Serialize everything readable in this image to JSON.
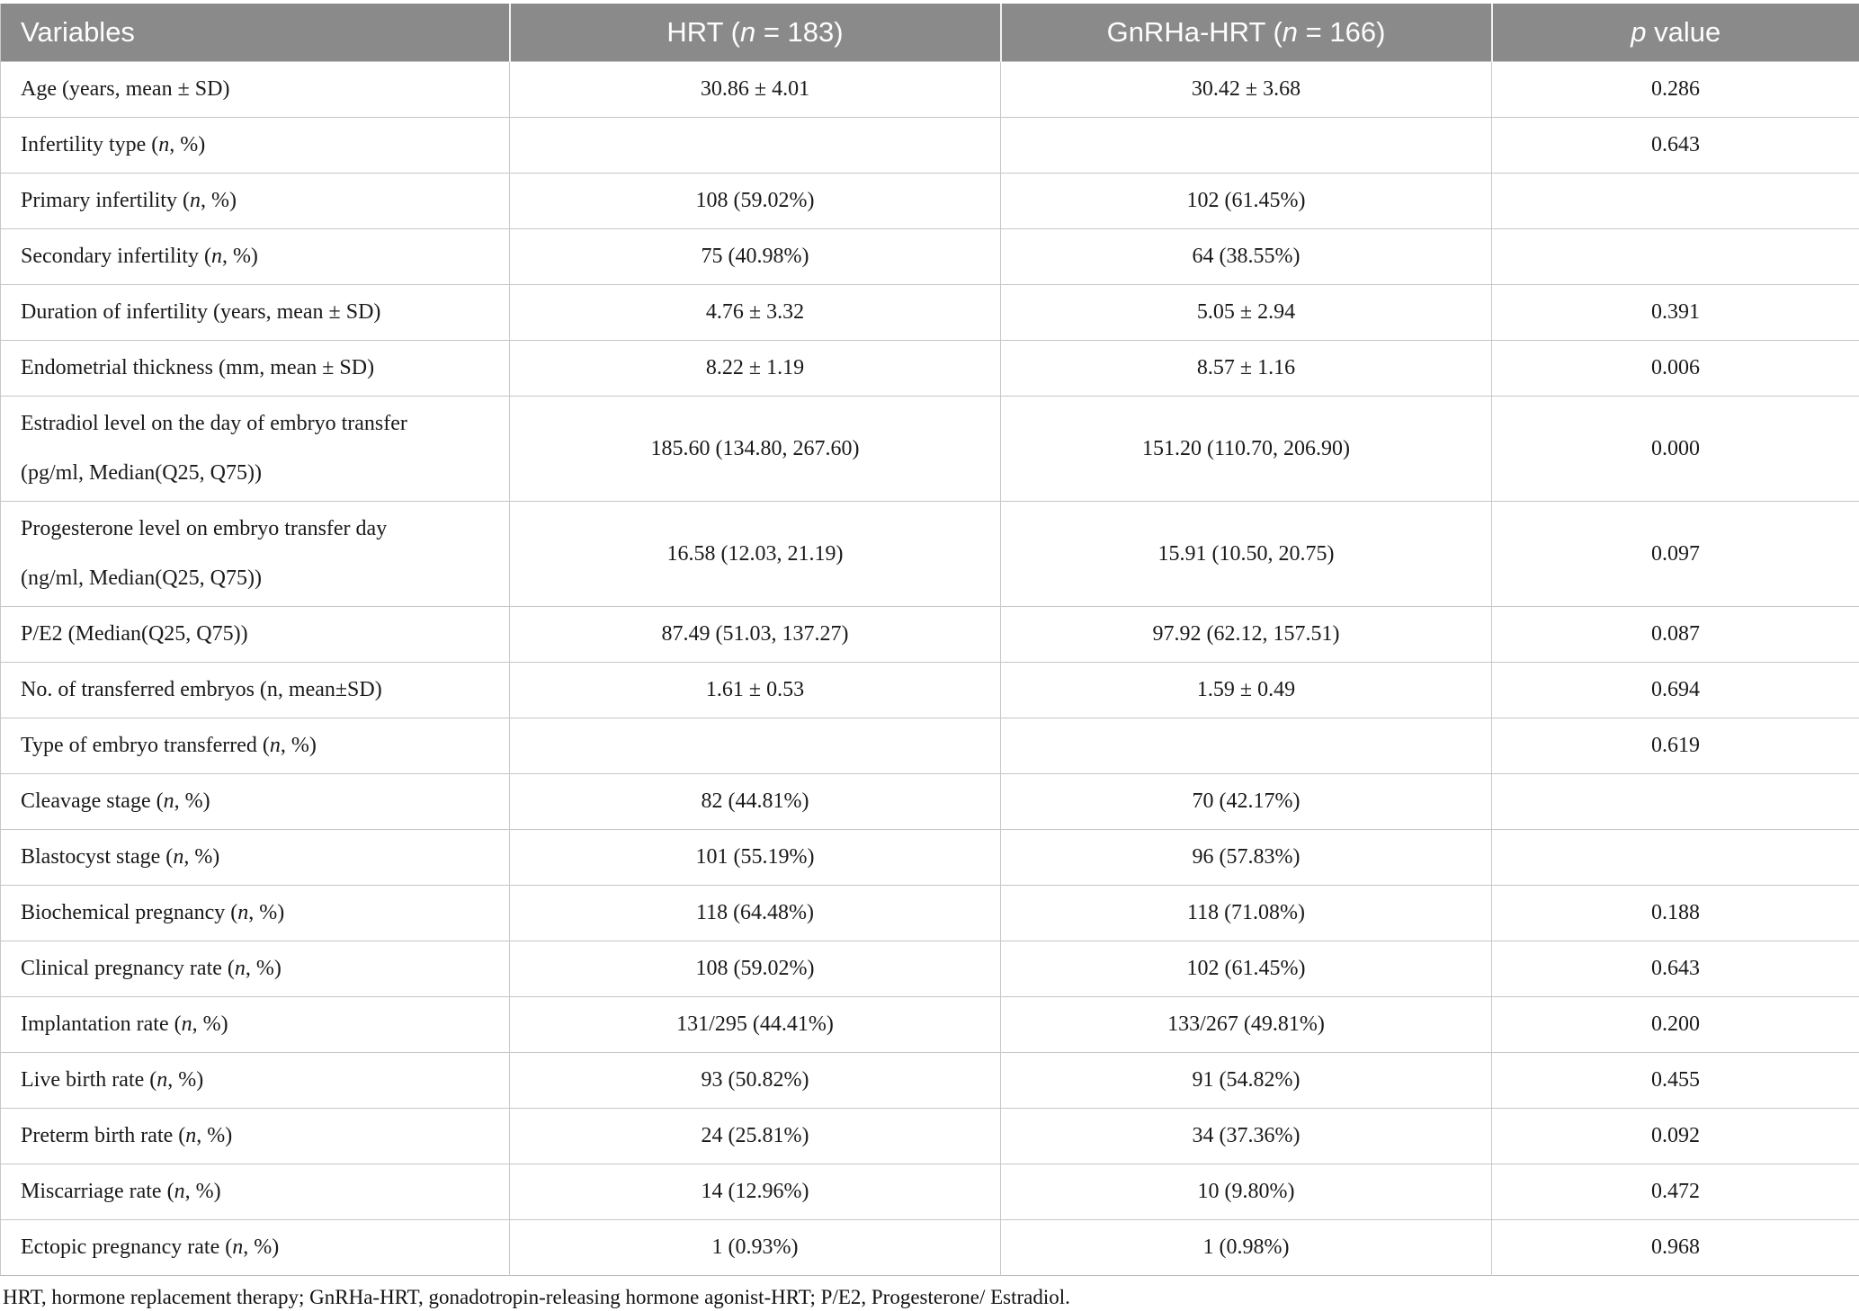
{
  "theme": {
    "header_bg": "#8a8a8a",
    "header_text": "#fdfdfd",
    "grid_line": "#c9c9c9",
    "body_text": "#1a1a1a"
  },
  "table": {
    "headers": [
      {
        "pre": "Variables",
        "italic": "",
        "post": ""
      },
      {
        "pre": "HRT (",
        "italic": "n",
        "post": " = 183)"
      },
      {
        "pre": "GnRHa-HRT (",
        "italic": "n",
        "post": " = 166)"
      },
      {
        "pre": "",
        "italic": "p",
        "post": " value"
      }
    ],
    "rows": [
      {
        "label": "Age (years, mean ± SD)",
        "label2": "",
        "italic_n": false,
        "hrt": "30.86 ± 4.01",
        "gnrha": "30.42 ± 3.68",
        "p": "0.286"
      },
      {
        "label": "Infertility type (n, %)",
        "label2": "",
        "italic_n": true,
        "hrt": "",
        "gnrha": "",
        "p": "0.643"
      },
      {
        "label": "Primary infertility (n, %)",
        "label2": "",
        "italic_n": true,
        "hrt": "108 (59.02%)",
        "gnrha": "102 (61.45%)",
        "p": ""
      },
      {
        "label": "Secondary infertility (n, %)",
        "label2": "",
        "italic_n": true,
        "hrt": "75 (40.98%)",
        "gnrha": "64 (38.55%)",
        "p": ""
      },
      {
        "label": "Duration of infertility (years, mean ± SD)",
        "label2": "",
        "italic_n": false,
        "hrt": "4.76 ± 3.32",
        "gnrha": "5.05 ± 2.94",
        "p": "0.391"
      },
      {
        "label": "Endometrial thickness (mm, mean ± SD)",
        "label2": "",
        "italic_n": false,
        "hrt": "8.22 ± 1.19",
        "gnrha": "8.57 ± 1.16",
        "p": "0.006"
      },
      {
        "label": "Estradiol level on the day of embryo transfer",
        "label2": "(pg/ml, Median(Q25, Q75))",
        "italic_n": false,
        "hrt": "185.60 (134.80, 267.60)",
        "gnrha": "151.20 (110.70, 206.90)",
        "p": "0.000"
      },
      {
        "label": "Progesterone level on embryo transfer day",
        "label2": "(ng/ml, Median(Q25, Q75))",
        "italic_n": false,
        "hrt": "16.58 (12.03, 21.19)",
        "gnrha": "15.91 (10.50, 20.75)",
        "p": "0.097"
      },
      {
        "label": "P/E2 (Median(Q25, Q75))",
        "label2": "",
        "italic_n": false,
        "hrt": "87.49 (51.03, 137.27)",
        "gnrha": "97.92 (62.12, 157.51)",
        "p": "0.087"
      },
      {
        "label": "No. of transferred embryos (n, mean±SD)",
        "label2": "",
        "italic_n": false,
        "hrt": "1.61 ± 0.53",
        "gnrha": "1.59 ± 0.49",
        "p": "0.694"
      },
      {
        "label": "Type of embryo transferred (n, %)",
        "label2": "",
        "italic_n": true,
        "hrt": "",
        "gnrha": "",
        "p": "0.619"
      },
      {
        "label": "Cleavage stage (n, %)",
        "label2": "",
        "italic_n": true,
        "hrt": "82 (44.81%)",
        "gnrha": "70 (42.17%)",
        "p": ""
      },
      {
        "label": "Blastocyst stage (n, %)",
        "label2": "",
        "italic_n": true,
        "hrt": "101 (55.19%)",
        "gnrha": "96 (57.83%)",
        "p": ""
      },
      {
        "label": "Biochemical pregnancy (n, %)",
        "label2": "",
        "italic_n": true,
        "hrt": "118 (64.48%)",
        "gnrha": "118 (71.08%)",
        "p": "0.188"
      },
      {
        "label": "Clinical pregnancy rate (n, %)",
        "label2": "",
        "italic_n": true,
        "hrt": "108 (59.02%)",
        "gnrha": "102 (61.45%)",
        "p": "0.643"
      },
      {
        "label": "Implantation rate (n, %)",
        "label2": "",
        "italic_n": true,
        "hrt": "131/295 (44.41%)",
        "gnrha": "133/267 (49.81%)",
        "p": "0.200"
      },
      {
        "label": "Live birth rate (n, %)",
        "label2": "",
        "italic_n": true,
        "hrt": "93 (50.82%)",
        "gnrha": "91 (54.82%)",
        "p": "0.455"
      },
      {
        "label": "Preterm birth rate (n, %)",
        "label2": "",
        "italic_n": true,
        "hrt": "24 (25.81%)",
        "gnrha": "34 (37.36%)",
        "p": "0.092"
      },
      {
        "label": "Miscarriage rate (n, %)",
        "label2": "",
        "italic_n": true,
        "hrt": "14 (12.96%)",
        "gnrha": "10 (9.80%)",
        "p": "0.472"
      },
      {
        "label": "Ectopic pregnancy rate (n, %)",
        "label2": "",
        "italic_n": true,
        "hrt": "1 (0.93%)",
        "gnrha": "1 (0.98%)",
        "p": "0.968"
      }
    ]
  },
  "footnote": "HRT, hormone replacement therapy; GnRHa-HRT, gonadotropin-releasing hormone agonist-HRT; P/E2, Progesterone/ Estradiol."
}
